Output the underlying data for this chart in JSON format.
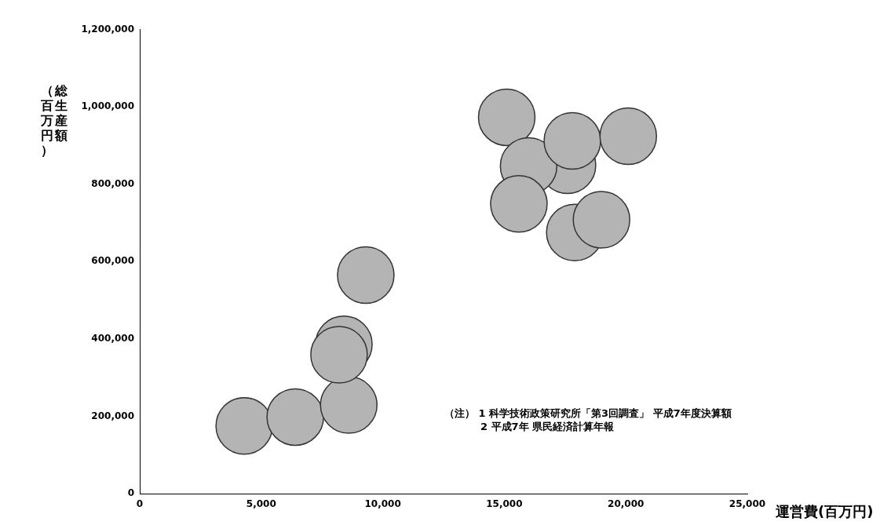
{
  "chart_data": {
    "type": "scatter",
    "xlabel": "運営費(百万円)",
    "ylabel": "総生産額（百万円）",
    "annotations": [
      "（注） 1 科学技術政策研究所「第3回調査」 平成7年度決算額",
      "2 平成7年 県民経済計算年報"
    ],
    "xlim": [
      0,
      25000
    ],
    "ylim": [
      0,
      1200000
    ],
    "xticks": [
      0,
      {
        "value": 5000,
        "label": "5,000"
      },
      {
        "value": 10000,
        "label": "10,000"
      },
      {
        "value": 15000,
        "label": "15,000"
      },
      {
        "value": 20000,
        "label": "20,000"
      },
      {
        "value": 25000,
        "label": "25,000"
      }
    ],
    "yticks": [
      0,
      {
        "value": 200000,
        "label": "200,000"
      },
      {
        "value": 400000,
        "label": "400,000"
      },
      {
        "value": 600000,
        "label": "600,000"
      },
      {
        "value": 800000,
        "label": "800,000"
      },
      {
        "value": 1000000,
        "label": "1,000,000"
      },
      {
        "value": 1200000,
        "label": "1,200,000"
      }
    ],
    "marker": "circle",
    "series": [
      {
        "color": "#b4b4b4",
        "x": [
          4300,
          6400,
          8600,
          8400,
          8200,
          9300,
          15100,
          17600,
          16000,
          15600,
          17800,
          20100,
          17900,
          19000
        ],
        "values": [
          175000,
          198000,
          229000,
          386000,
          359000,
          565000,
          973000,
          849000,
          847000,
          749000,
          912000,
          924000,
          675000,
          708000
        ]
      }
    ]
  }
}
